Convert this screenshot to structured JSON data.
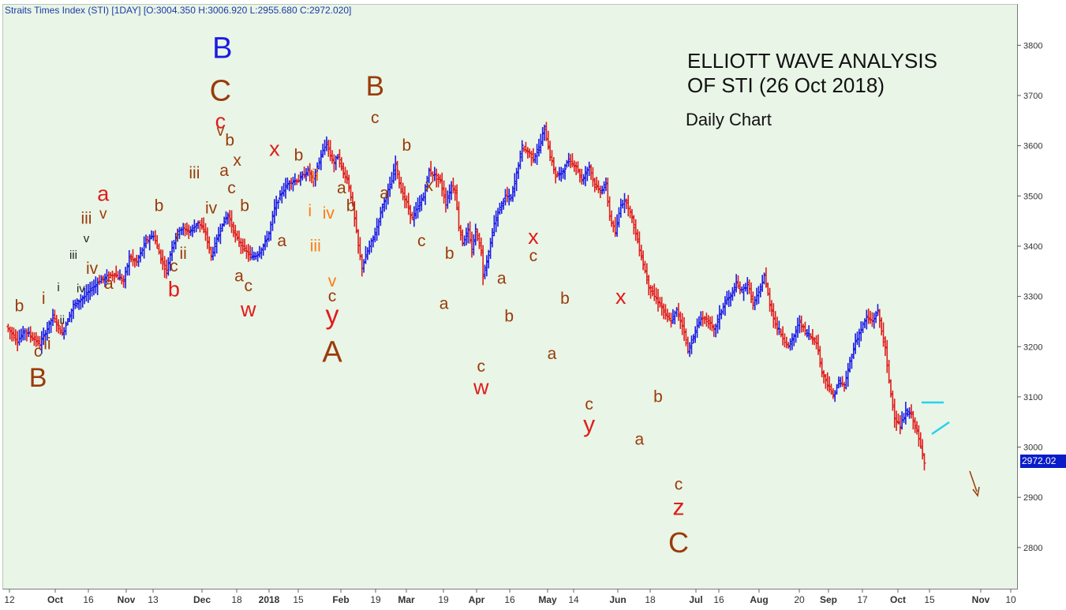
{
  "header": {
    "chart_title": "Straits Times Index (STI) [1DAY] [O:3004.350 H:3006.920 L:2955.680 C:2972.020]"
  },
  "heading": {
    "line1": "ELLIOTT WAVE ANALYSIS",
    "line2": "OF STI (26 Oct 2018)",
    "subtitle": "Daily Chart"
  },
  "last_price_label": "2972.02",
  "colors": {
    "up_bar": "#1a1ae6",
    "down_bar": "#e01b1b",
    "brown": "#9a3a0a",
    "red": "#e01b1b",
    "blue": "#1a1ae6",
    "orange": "#ff7a14",
    "black": "#222222",
    "cyan": "#22d3ee",
    "background": "#e9f5e6"
  },
  "chart_data": {
    "type": "ohlc",
    "title": "Straits Times Index (STI) [1DAY] [O:3004.350 H:3006.920 L:2955.680 C:2972.020]",
    "ylim": [
      2740,
      3860
    ],
    "y_ticks": [
      2800,
      2900,
      3000,
      3100,
      3200,
      3300,
      3400,
      3500,
      3600,
      3700,
      3800
    ],
    "x_tick_labels": [
      {
        "label": "12",
        "bold": false
      },
      {
        "label": "Oct",
        "bold": true
      },
      {
        "label": "16",
        "bold": false
      },
      {
        "label": "Nov",
        "bold": true
      },
      {
        "label": "13",
        "bold": false
      },
      {
        "label": "Dec",
        "bold": true
      },
      {
        "label": "18",
        "bold": false
      },
      {
        "label": "2018",
        "bold": true
      },
      {
        "label": "15",
        "bold": false
      },
      {
        "label": "Feb",
        "bold": true
      },
      {
        "label": "19",
        "bold": false
      },
      {
        "label": "Mar",
        "bold": true
      },
      {
        "label": "19",
        "bold": false
      },
      {
        "label": "Apr",
        "bold": true
      },
      {
        "label": "16",
        "bold": false
      },
      {
        "label": "May",
        "bold": true
      },
      {
        "label": "14",
        "bold": false
      },
      {
        "label": "Jun",
        "bold": true
      },
      {
        "label": "18",
        "bold": false
      },
      {
        "label": "Jul",
        "bold": true
      },
      {
        "label": "16",
        "bold": false
      },
      {
        "label": "Aug",
        "bold": true
      },
      {
        "label": "20",
        "bold": false
      },
      {
        "label": "Sep",
        "bold": true
      },
      {
        "label": "17",
        "bold": false
      },
      {
        "label": "Oct",
        "bold": true
      },
      {
        "label": "15",
        "bold": false
      },
      {
        "label": "Nov",
        "bold": true
      },
      {
        "label": "10",
        "bold": false
      }
    ],
    "price_path": [
      {
        "d": 0,
        "v": 3240
      },
      {
        "d": 6,
        "v": 3212
      },
      {
        "d": 10,
        "v": 3232
      },
      {
        "d": 18,
        "v": 3205
      },
      {
        "d": 25,
        "v": 3260
      },
      {
        "d": 30,
        "v": 3225
      },
      {
        "d": 36,
        "v": 3282
      },
      {
        "d": 42,
        "v": 3300
      },
      {
        "d": 50,
        "v": 3332
      },
      {
        "d": 58,
        "v": 3345
      },
      {
        "d": 63,
        "v": 3330
      },
      {
        "d": 66,
        "v": 3378
      },
      {
        "d": 70,
        "v": 3368
      },
      {
        "d": 75,
        "v": 3410
      },
      {
        "d": 79,
        "v": 3422
      },
      {
        "d": 83,
        "v": 3376
      },
      {
        "d": 86,
        "v": 3350
      },
      {
        "d": 89,
        "v": 3400
      },
      {
        "d": 93,
        "v": 3435
      },
      {
        "d": 99,
        "v": 3430
      },
      {
        "d": 103,
        "v": 3448
      },
      {
        "d": 107,
        "v": 3425
      },
      {
        "d": 110,
        "v": 3380
      },
      {
        "d": 116,
        "v": 3445
      },
      {
        "d": 119,
        "v": 3462
      },
      {
        "d": 123,
        "v": 3420
      },
      {
        "d": 128,
        "v": 3392
      },
      {
        "d": 132,
        "v": 3378
      },
      {
        "d": 135,
        "v": 3385
      },
      {
        "d": 138,
        "v": 3400
      },
      {
        "d": 141,
        "v": 3425
      },
      {
        "d": 144,
        "v": 3475
      },
      {
        "d": 148,
        "v": 3508
      },
      {
        "d": 152,
        "v": 3528
      },
      {
        "d": 157,
        "v": 3532
      },
      {
        "d": 162,
        "v": 3550
      },
      {
        "d": 165,
        "v": 3532
      },
      {
        "d": 169,
        "v": 3580
      },
      {
        "d": 172,
        "v": 3605
      },
      {
        "d": 174,
        "v": 3580
      },
      {
        "d": 176,
        "v": 3565
      },
      {
        "d": 178,
        "v": 3580
      },
      {
        "d": 181,
        "v": 3545
      },
      {
        "d": 183,
        "v": 3535
      },
      {
        "d": 186,
        "v": 3482
      },
      {
        "d": 189,
        "v": 3400
      },
      {
        "d": 191,
        "v": 3358
      },
      {
        "d": 194,
        "v": 3390
      },
      {
        "d": 198,
        "v": 3425
      },
      {
        "d": 202,
        "v": 3480
      },
      {
        "d": 207,
        "v": 3530
      },
      {
        "d": 209,
        "v": 3565
      },
      {
        "d": 212,
        "v": 3510
      },
      {
        "d": 215,
        "v": 3485
      },
      {
        "d": 218,
        "v": 3455
      },
      {
        "d": 221,
        "v": 3478
      },
      {
        "d": 224,
        "v": 3498
      },
      {
        "d": 227,
        "v": 3550
      },
      {
        "d": 230,
        "v": 3540
      },
      {
        "d": 233,
        "v": 3530
      },
      {
        "d": 236,
        "v": 3485
      },
      {
        "d": 239,
        "v": 3520
      },
      {
        "d": 241,
        "v": 3510
      },
      {
        "d": 243,
        "v": 3440
      },
      {
        "d": 245,
        "v": 3408
      },
      {
        "d": 248,
        "v": 3430
      },
      {
        "d": 250,
        "v": 3390
      },
      {
        "d": 252,
        "v": 3432
      },
      {
        "d": 255,
        "v": 3390
      },
      {
        "d": 256,
        "v": 3342
      },
      {
        "d": 259,
        "v": 3385
      },
      {
        "d": 262,
        "v": 3445
      },
      {
        "d": 265,
        "v": 3475
      },
      {
        "d": 268,
        "v": 3500
      },
      {
        "d": 271,
        "v": 3495
      },
      {
        "d": 274,
        "v": 3545
      },
      {
        "d": 277,
        "v": 3598
      },
      {
        "d": 280,
        "v": 3588
      },
      {
        "d": 283,
        "v": 3575
      },
      {
        "d": 286,
        "v": 3595
      },
      {
        "d": 289,
        "v": 3635
      },
      {
        "d": 292,
        "v": 3580
      },
      {
        "d": 295,
        "v": 3540
      },
      {
        "d": 298,
        "v": 3545
      },
      {
        "d": 302,
        "v": 3570
      },
      {
        "d": 306,
        "v": 3560
      },
      {
        "d": 309,
        "v": 3530
      },
      {
        "d": 313,
        "v": 3560
      },
      {
        "d": 316,
        "v": 3520
      },
      {
        "d": 319,
        "v": 3510
      },
      {
        "d": 322,
        "v": 3522
      },
      {
        "d": 324,
        "v": 3460
      },
      {
        "d": 327,
        "v": 3425
      },
      {
        "d": 330,
        "v": 3485
      },
      {
        "d": 333,
        "v": 3490
      },
      {
        "d": 336,
        "v": 3455
      },
      {
        "d": 339,
        "v": 3410
      },
      {
        "d": 342,
        "v": 3365
      },
      {
        "d": 345,
        "v": 3320
      },
      {
        "d": 348,
        "v": 3300
      },
      {
        "d": 351,
        "v": 3285
      },
      {
        "d": 354,
        "v": 3262
      },
      {
        "d": 357,
        "v": 3250
      },
      {
        "d": 360,
        "v": 3272
      },
      {
        "d": 364,
        "v": 3232
      },
      {
        "d": 366,
        "v": 3190
      },
      {
        "d": 369,
        "v": 3220
      },
      {
        "d": 373,
        "v": 3258
      },
      {
        "d": 377,
        "v": 3250
      },
      {
        "d": 380,
        "v": 3232
      },
      {
        "d": 383,
        "v": 3262
      },
      {
        "d": 386,
        "v": 3290
      },
      {
        "d": 389,
        "v": 3300
      },
      {
        "d": 392,
        "v": 3325
      },
      {
        "d": 395,
        "v": 3310
      },
      {
        "d": 398,
        "v": 3325
      },
      {
        "d": 401,
        "v": 3285
      },
      {
        "d": 404,
        "v": 3305
      },
      {
        "d": 407,
        "v": 3342
      },
      {
        "d": 410,
        "v": 3285
      },
      {
        "d": 413,
        "v": 3245
      },
      {
        "d": 416,
        "v": 3225
      },
      {
        "d": 420,
        "v": 3200
      },
      {
        "d": 423,
        "v": 3220
      },
      {
        "d": 426,
        "v": 3250
      },
      {
        "d": 429,
        "v": 3230
      },
      {
        "d": 432,
        "v": 3220
      },
      {
        "d": 435,
        "v": 3210
      },
      {
        "d": 438,
        "v": 3150
      },
      {
        "d": 441,
        "v": 3125
      },
      {
        "d": 444,
        "v": 3100
      },
      {
        "d": 447,
        "v": 3130
      },
      {
        "d": 450,
        "v": 3120
      },
      {
        "d": 453,
        "v": 3170
      },
      {
        "d": 456,
        "v": 3210
      },
      {
        "d": 459,
        "v": 3235
      },
      {
        "d": 462,
        "v": 3258
      },
      {
        "d": 465,
        "v": 3250
      },
      {
        "d": 468,
        "v": 3270
      },
      {
        "d": 470,
        "v": 3232
      },
      {
        "d": 472,
        "v": 3195
      },
      {
        "d": 474,
        "v": 3130
      },
      {
        "d": 477,
        "v": 3060
      },
      {
        "d": 480,
        "v": 3040
      },
      {
        "d": 483,
        "v": 3070
      },
      {
        "d": 486,
        "v": 3065
      },
      {
        "d": 489,
        "v": 3030
      },
      {
        "d": 491,
        "v": 3000
      },
      {
        "d": 493,
        "v": 2972
      }
    ],
    "last_close": 2972.02,
    "wave_labels": [
      {
        "t": "b",
        "d": 7,
        "v": 3270,
        "c": "brown",
        "s": 21
      },
      {
        "t": "c",
        "d": 17,
        "v": 3180,
        "c": "brown",
        "s": 21
      },
      {
        "t": "B",
        "d": 17,
        "v": 3120,
        "c": "brown",
        "s": 34
      },
      {
        "t": "i",
        "d": 20,
        "v": 3285,
        "c": "brown",
        "s": 21
      },
      {
        "t": "ii",
        "d": 22,
        "v": 3195,
        "c": "brown",
        "s": 21
      },
      {
        "t": "i",
        "d": 28,
        "v": 3310,
        "c": "black",
        "s": 15
      },
      {
        "t": "ii",
        "d": 30,
        "v": 3245,
        "c": "black",
        "s": 15
      },
      {
        "t": "iii",
        "d": 36,
        "v": 3375,
        "c": "black",
        "s": 15
      },
      {
        "t": "iv",
        "d": 40,
        "v": 3308,
        "c": "black",
        "s": 15
      },
      {
        "t": "iii",
        "d": 43,
        "v": 3445,
        "c": "brown",
        "s": 21
      },
      {
        "t": "v",
        "d": 43,
        "v": 3408,
        "c": "black",
        "s": 15
      },
      {
        "t": "iv",
        "d": 46,
        "v": 3345,
        "c": "brown",
        "s": 21
      },
      {
        "t": "a",
        "d": 52,
        "v": 3490,
        "c": "red",
        "s": 27
      },
      {
        "t": "v",
        "d": 52,
        "v": 3455,
        "c": "brown",
        "s": 19
      },
      {
        "t": "a",
        "d": 55,
        "v": 3315,
        "c": "brown",
        "s": 21
      },
      {
        "t": "b",
        "d": 82,
        "v": 3470,
        "c": "brown",
        "s": 21
      },
      {
        "t": "i",
        "d": 92,
        "v": 3410,
        "c": "brown",
        "s": 21
      },
      {
        "t": "c",
        "d": 90,
        "v": 3350,
        "c": "brown",
        "s": 21
      },
      {
        "t": "ii",
        "d": 95,
        "v": 3375,
        "c": "brown",
        "s": 21
      },
      {
        "t": "b",
        "d": 90,
        "v": 3300,
        "c": "red",
        "s": 27
      },
      {
        "t": "iii",
        "d": 101,
        "v": 3535,
        "c": "brown",
        "s": 21
      },
      {
        "t": "iv",
        "d": 110,
        "v": 3465,
        "c": "brown",
        "s": 21
      },
      {
        "t": "B",
        "d": 116,
        "v": 3775,
        "c": "blue",
        "s": 38
      },
      {
        "t": "C",
        "d": 115,
        "v": 3690,
        "c": "brown",
        "s": 38
      },
      {
        "t": "c",
        "d": 115,
        "v": 3635,
        "c": "red",
        "s": 27
      },
      {
        "t": "v",
        "d": 115,
        "v": 3620,
        "c": "brown",
        "s": 19
      },
      {
        "t": "b",
        "d": 120,
        "v": 3600,
        "c": "brown",
        "s": 21
      },
      {
        "t": "a",
        "d": 117,
        "v": 3540,
        "c": "brown",
        "s": 21
      },
      {
        "t": "x",
        "d": 124,
        "v": 3560,
        "c": "brown",
        "s": 21
      },
      {
        "t": "c",
        "d": 121,
        "v": 3505,
        "c": "brown",
        "s": 21
      },
      {
        "t": "b",
        "d": 128,
        "v": 3470,
        "c": "brown",
        "s": 21
      },
      {
        "t": "a",
        "d": 125,
        "v": 3330,
        "c": "brown",
        "s": 21
      },
      {
        "t": "c",
        "d": 130,
        "v": 3310,
        "c": "brown",
        "s": 21
      },
      {
        "t": "w",
        "d": 130,
        "v": 3260,
        "c": "red",
        "s": 27
      },
      {
        "t": "x",
        "d": 144,
        "v": 3580,
        "c": "red",
        "s": 27
      },
      {
        "t": "a",
        "d": 148,
        "v": 3400,
        "c": "brown",
        "s": 21
      },
      {
        "t": "b",
        "d": 157,
        "v": 3570,
        "c": "brown",
        "s": 21
      },
      {
        "t": "ii",
        "d": 166,
        "v": 3530,
        "c": "orange",
        "s": 21
      },
      {
        "t": "i",
        "d": 163,
        "v": 3460,
        "c": "orange",
        "s": 21
      },
      {
        "t": "iii",
        "d": 166,
        "v": 3390,
        "c": "orange",
        "s": 21
      },
      {
        "t": "iv",
        "d": 173,
        "v": 3455,
        "c": "orange",
        "s": 21
      },
      {
        "t": "v",
        "d": 175,
        "v": 3320,
        "c": "orange",
        "s": 21
      },
      {
        "t": "c",
        "d": 175,
        "v": 3290,
        "c": "brown",
        "s": 21
      },
      {
        "t": "y",
        "d": 175,
        "v": 3245,
        "c": "red",
        "s": 34
      },
      {
        "t": "A",
        "d": 175,
        "v": 3170,
        "c": "brown",
        "s": 38
      },
      {
        "t": "a",
        "d": 180,
        "v": 3505,
        "c": "brown",
        "s": 21
      },
      {
        "t": "b",
        "d": 185,
        "v": 3470,
        "c": "brown",
        "s": 21
      },
      {
        "t": "B",
        "d": 198,
        "v": 3700,
        "c": "brown",
        "s": 35
      },
      {
        "t": "c",
        "d": 198,
        "v": 3645,
        "c": "brown",
        "s": 21
      },
      {
        "t": "a",
        "d": 203,
        "v": 3495,
        "c": "brown",
        "s": 21
      },
      {
        "t": "b",
        "d": 215,
        "v": 3590,
        "c": "brown",
        "s": 21
      },
      {
        "t": "x",
        "d": 227,
        "v": 3510,
        "c": "brown",
        "s": 21
      },
      {
        "t": "c",
        "d": 223,
        "v": 3400,
        "c": "brown",
        "s": 21
      },
      {
        "t": "b",
        "d": 238,
        "v": 3375,
        "c": "brown",
        "s": 21
      },
      {
        "t": "a",
        "d": 235,
        "v": 3275,
        "c": "brown",
        "s": 21
      },
      {
        "t": "c",
        "d": 255,
        "v": 3150,
        "c": "brown",
        "s": 21
      },
      {
        "t": "w",
        "d": 255,
        "v": 3105,
        "c": "red",
        "s": 27
      },
      {
        "t": "a",
        "d": 266,
        "v": 3325,
        "c": "brown",
        "s": 21
      },
      {
        "t": "b",
        "d": 270,
        "v": 3250,
        "c": "brown",
        "s": 21
      },
      {
        "t": "x",
        "d": 283,
        "v": 3405,
        "c": "red",
        "s": 27
      },
      {
        "t": "c",
        "d": 283,
        "v": 3370,
        "c": "brown",
        "s": 21
      },
      {
        "t": "a",
        "d": 293,
        "v": 3175,
        "c": "brown",
        "s": 21
      },
      {
        "t": "b",
        "d": 300,
        "v": 3285,
        "c": "brown",
        "s": 21
      },
      {
        "t": "c",
        "d": 313,
        "v": 3075,
        "c": "brown",
        "s": 21
      },
      {
        "t": "y",
        "d": 313,
        "v": 3030,
        "c": "red",
        "s": 30
      },
      {
        "t": "x",
        "d": 330,
        "v": 3285,
        "c": "red",
        "s": 27
      },
      {
        "t": "b",
        "d": 350,
        "v": 3090,
        "c": "brown",
        "s": 21
      },
      {
        "t": "a",
        "d": 340,
        "v": 3005,
        "c": "brown",
        "s": 21
      },
      {
        "t": "c",
        "d": 361,
        "v": 2915,
        "c": "brown",
        "s": 21
      },
      {
        "t": "z",
        "d": 361,
        "v": 2865,
        "c": "red",
        "s": 30
      },
      {
        "t": "C",
        "d": 361,
        "v": 2790,
        "c": "brown",
        "s": 36
      }
    ]
  }
}
